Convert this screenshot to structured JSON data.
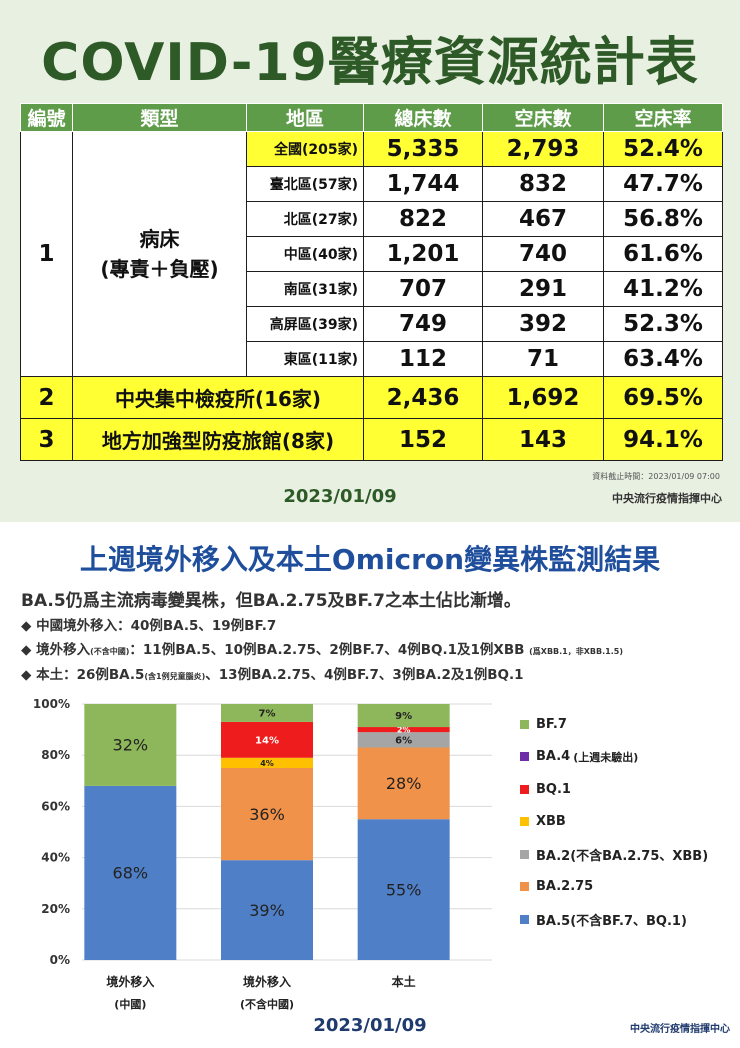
{
  "top": {
    "title": "COVID-19醫療資源統計表",
    "headers": [
      "編號",
      "類型",
      "地區",
      "總床數",
      "空床數",
      "空床率"
    ],
    "group1": {
      "index": "1",
      "type_line1": "病床",
      "type_line2": "(專責＋負壓)",
      "rows": [
        {
          "region": "全國(205家)",
          "total": "5,335",
          "empty": "2,793",
          "rate": "52.4%"
        },
        {
          "region": "臺北區(57家)",
          "total": "1,744",
          "empty": "832",
          "rate": "47.7%"
        },
        {
          "region": "北區(27家)",
          "total": "822",
          "empty": "467",
          "rate": "56.8%"
        },
        {
          "region": "中區(40家)",
          "total": "1,201",
          "empty": "740",
          "rate": "61.6%"
        },
        {
          "region": "南區(31家)",
          "total": "707",
          "empty": "291",
          "rate": "41.2%"
        },
        {
          "region": "高屏區(39家)",
          "total": "749",
          "empty": "392",
          "rate": "52.3%"
        },
        {
          "region": "東區(11家)",
          "total": "112",
          "empty": "71",
          "rate": "63.4%"
        }
      ]
    },
    "group2": {
      "index": "2",
      "label": "中央集中檢疫所(16家)",
      "total": "2,436",
      "empty": "1,692",
      "rate": "69.5%"
    },
    "group3": {
      "index": "3",
      "label": "地方加強型防疫旅館(8家)",
      "total": "152",
      "empty": "143",
      "rate": "94.1%"
    },
    "timestamp_note": "資料截止時間：2023/01/09 07:00",
    "date": "2023/01/09",
    "org": "中央流行疫情指揮中心"
  },
  "bottom": {
    "title": "上週境外移入及本土Omicron變異株監測結果",
    "summary": "BA.5仍爲主流病毒變異株，但BA.2.75及BF.7之本土佔比漸增。",
    "bullet1": "◆ 中國境外移入：40例BA.5、19例BF.7",
    "bullet2_a": "◆ 境外移入",
    "bullet2_small": "(不含中國)",
    "bullet2_b": "：11例BA.5、10例BA.2.75、2例BF.7、4例BQ.1及1例XBB",
    "bullet2_note": "(爲XBB.1，非XBB.1.5)",
    "bullet3_a": "◆ 本土：26例BA.5",
    "bullet3_small": "(含1例兒童腦炎)",
    "bullet3_b": "、13例BA.2.75、4例BF.7、3例BA.2及1例BQ.1",
    "date": "2023/01/09",
    "org": "中央流行疫情指揮中心"
  },
  "legend_items": [
    {
      "label": "BF.7",
      "note": "",
      "color": "#8db75a"
    },
    {
      "label": "BA.4",
      "note": "(上週未驗出)",
      "color": "#6f2da8"
    },
    {
      "label": "BQ.1",
      "note": "",
      "color": "#ee1c1c"
    },
    {
      "label": "XBB",
      "note": "",
      "color": "#ffc000"
    },
    {
      "label": "BA.2(不含BA.2.75、XBB)",
      "note": "",
      "color": "#a5a5a5"
    },
    {
      "label": "BA.2.75",
      "note": "",
      "color": "#f0924a"
    },
    {
      "label": "BA.5(不含BF.7、BQ.1)",
      "note": "",
      "color": "#4f7fc6"
    }
  ],
  "chart_data": {
    "type": "bar",
    "stacked": true,
    "categories": [
      {
        "line1": "境外移入",
        "line2": "(中國)"
      },
      {
        "line1": "境外移入",
        "line2": "(不含中國)"
      },
      {
        "line1": "本土",
        "line2": ""
      }
    ],
    "ylim": [
      0,
      100
    ],
    "yticks": [
      "0%",
      "20%",
      "40%",
      "60%",
      "80%",
      "100%"
    ],
    "series": [
      {
        "name": "BA.5(不含BF.7、BQ.1)",
        "color": "#4f7fc6",
        "values": [
          68,
          39,
          55
        ],
        "labels": [
          "68%",
          "39%",
          "55%"
        ]
      },
      {
        "name": "BA.2.75",
        "color": "#f0924a",
        "values": [
          0,
          36,
          28
        ],
        "labels": [
          "",
          "36%",
          "28%"
        ]
      },
      {
        "name": "BA.2(不含BA.2.75、XBB)",
        "color": "#a5a5a5",
        "values": [
          0,
          0,
          6
        ],
        "labels": [
          "",
          "",
          "6%"
        ]
      },
      {
        "name": "XBB",
        "color": "#ffc000",
        "values": [
          0,
          4,
          0
        ],
        "labels": [
          "",
          "4%",
          ""
        ]
      },
      {
        "name": "BQ.1",
        "color": "#ee1c1c",
        "values": [
          0,
          14,
          2
        ],
        "labels": [
          "",
          "14%",
          "2%"
        ]
      },
      {
        "name": "BA.4",
        "color": "#6f2da8",
        "values": [
          0,
          0,
          0
        ],
        "labels": [
          "",
          "",
          ""
        ]
      },
      {
        "name": "BF.7",
        "color": "#8db75a",
        "values": [
          32,
          7,
          9
        ],
        "labels": [
          "32%",
          "7%",
          "9%"
        ]
      }
    ]
  }
}
